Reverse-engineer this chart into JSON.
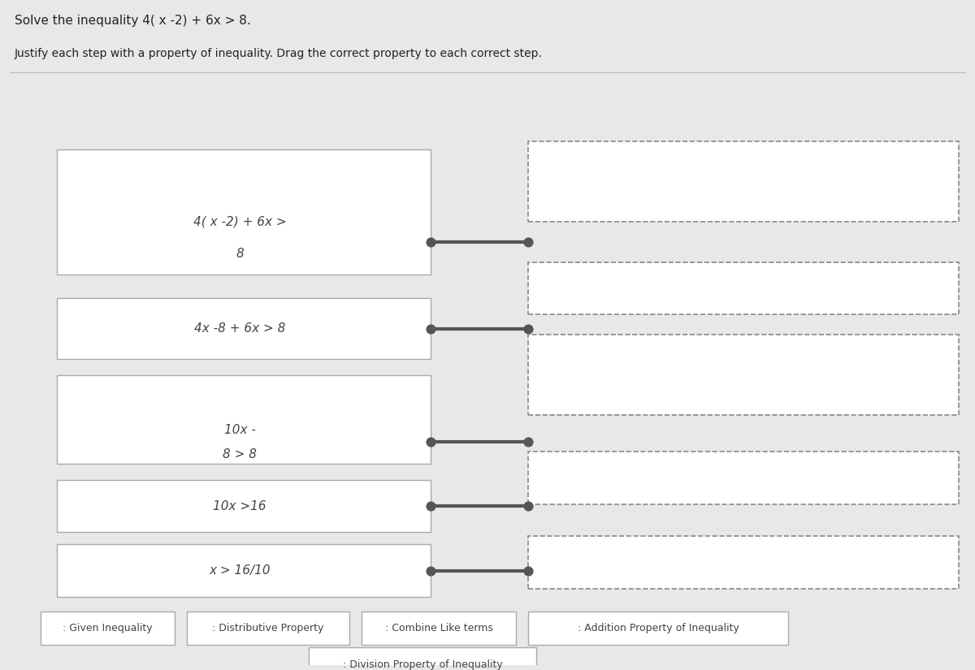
{
  "title": "Solve the inequality 4( x -2) + 6x > 8.",
  "subtitle": "Justify each step with a property of inequality. Drag the correct property to each correct step.",
  "bg_color": "#e8e8e8",
  "box_bg": "#dde4ec",
  "box_border": "#aaaaaa",
  "dashed_box_color": "#888888",
  "step_labels": [
    "4( x -2) + 6x >\n8",
    "4x -8 + 6x > 8",
    "10x -\n\n8 > 8",
    "10x >16",
    "x > 16/10"
  ],
  "property_labels": [
    ": Given Inequality",
    ": Distributive Property",
    ": Combine Like terms",
    ": Addition Property of Inequality",
    ": Division Property of Inequality"
  ],
  "connector_color": "#555555",
  "text_color": "#444444",
  "title_color": "#222222",
  "label_fontsize": 11,
  "title_fontsize": 11,
  "subtitle_fontsize": 10
}
